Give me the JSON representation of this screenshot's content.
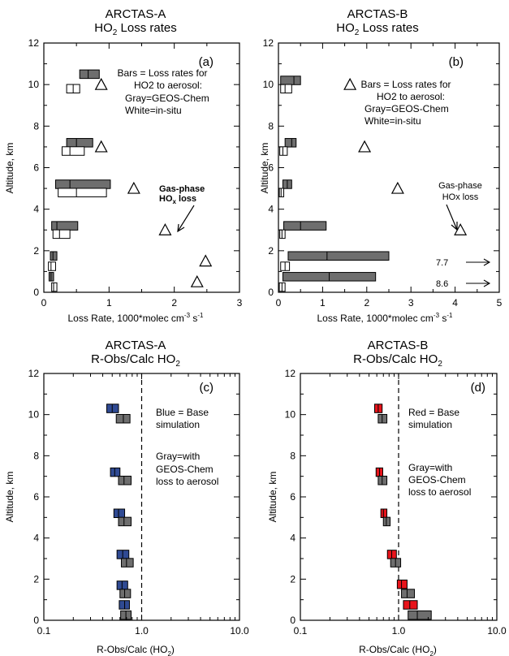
{
  "colors": {
    "gray": "#6e6e6e",
    "white": "#ffffff",
    "blue": "#2f4a93",
    "red": "#e8141b",
    "annot_gray": "#8c8c8c",
    "outline": "#000000"
  },
  "chart_data": [
    {
      "id": "a",
      "type": "bar",
      "orientation": "horizontal",
      "title": "ARCTAS-A",
      "subtitle": "HO₂ Loss rates",
      "panel_label": "(a)",
      "xlabel": "Loss Rate, 1000*molec cm⁻³ s⁻¹",
      "ylabel": "Altitude, km",
      "xlim": [
        0,
        3
      ],
      "ylim": [
        0,
        12
      ],
      "xscale": "linear",
      "xticks": [
        "0",
        "1",
        "2",
        "3"
      ],
      "yticks": [
        "0",
        "2",
        "4",
        "6",
        "8",
        "10",
        "12"
      ],
      "series": [
        {
          "name": "GEOS-Chem",
          "color": "gray",
          "boxes": [
            {
              "y": 10.5,
              "x": [
                0.55,
                0.68,
                0.85
              ]
            },
            {
              "y": 7.2,
              "x": [
                0.35,
                0.5,
                0.75
              ]
            },
            {
              "y": 5.2,
              "x": [
                0.18,
                0.4,
                1.02
              ]
            },
            {
              "y": 3.2,
              "x": [
                0.12,
                0.2,
                0.52
              ]
            },
            {
              "y": 1.75,
              "x": [
                0.1,
                0.14,
                0.2
              ]
            },
            {
              "y": 0.75,
              "x": [
                0.08,
                0.11,
                0.15
              ]
            }
          ]
        },
        {
          "name": "in-situ",
          "color": "white",
          "boxes": [
            {
              "y": 9.8,
              "x": [
                0.35,
                0.45,
                0.55
              ]
            },
            {
              "y": 6.8,
              "x": [
                0.28,
                0.4,
                0.62
              ]
            },
            {
              "y": 4.8,
              "x": [
                0.22,
                0.5,
                0.96
              ]
            },
            {
              "y": 2.8,
              "x": [
                0.14,
                0.24,
                0.4
              ]
            },
            {
              "y": 1.25,
              "x": [
                0.07,
                0.11,
                0.18
              ]
            },
            {
              "y": 0.25,
              "x": [
                0.12,
                0.15,
                0.2
              ]
            }
          ]
        },
        {
          "name": "Gas-phase HOx loss",
          "marker": "triangle",
          "points": [
            {
              "x": 0.88,
              "y": 10.0
            },
            {
              "x": 0.88,
              "y": 7.0
            },
            {
              "x": 1.38,
              "y": 5.0
            },
            {
              "x": 1.86,
              "y": 3.0
            },
            {
              "x": 2.48,
              "y": 1.5
            },
            {
              "x": 2.35,
              "y": 0.5
            }
          ]
        }
      ],
      "annotations": {
        "legend_line1": "Bars = Loss rates for",
        "legend_line2": "HO2 to aerosol:",
        "legend_gray": "Gray=GEOS-Chem",
        "legend_white": "White=in-situ",
        "gas_line1": "Gas-phase",
        "gas_line2_main": "HO",
        "gas_line2_sub": "x",
        "gas_line2_rest": " loss"
      }
    },
    {
      "id": "b",
      "type": "bar",
      "orientation": "horizontal",
      "title": "ARCTAS-B",
      "subtitle": "HO₂ Loss rates",
      "panel_label": "(b)",
      "xlabel": "Loss Rate, 1000*molec cm⁻³ s⁻¹",
      "ylabel": "Altitude, km",
      "xlim": [
        0,
        5
      ],
      "ylim": [
        0,
        12
      ],
      "xscale": "linear",
      "xticks": [
        "0",
        "1",
        "2",
        "3",
        "4",
        "5"
      ],
      "yticks": [
        "0",
        "2",
        "4",
        "6",
        "8",
        "10",
        "12"
      ],
      "series": [
        {
          "name": "GEOS-Chem",
          "color": "gray",
          "boxes": [
            {
              "y": 10.2,
              "x": [
                0.05,
                0.35,
                0.5
              ]
            },
            {
              "y": 7.2,
              "x": [
                0.15,
                0.3,
                0.4
              ]
            },
            {
              "y": 5.2,
              "x": [
                0.1,
                0.2,
                0.3
              ]
            },
            {
              "y": 3.2,
              "x": [
                0.12,
                0.5,
                1.08
              ]
            },
            {
              "y": 1.75,
              "x": [
                0.22,
                1.1,
                2.5
              ]
            },
            {
              "y": 0.75,
              "x": [
                0.1,
                1.15,
                2.2
              ]
            }
          ]
        },
        {
          "name": "in-situ",
          "color": "white",
          "boxes": [
            {
              "y": 9.8,
              "x": [
                0.05,
                0.15,
                0.3
              ]
            },
            {
              "y": 6.8,
              "x": [
                0.03,
                0.1,
                0.2
              ]
            },
            {
              "y": 4.8,
              "x": [
                0.02,
                0.06,
                0.12
              ]
            },
            {
              "y": 2.8,
              "x": [
                0.03,
                0.08,
                0.15
              ]
            },
            {
              "y": 1.25,
              "x": [
                0.05,
                0.15,
                0.25
              ]
            },
            {
              "y": 0.25,
              "x": [
                0.02,
                0.08,
                0.15
              ]
            }
          ]
        },
        {
          "name": "Gas-phase HOx loss",
          "marker": "triangle",
          "points": [
            {
              "x": 1.62,
              "y": 10.0
            },
            {
              "x": 1.95,
              "y": 7.0
            },
            {
              "x": 2.7,
              "y": 5.0
            },
            {
              "x": 4.12,
              "y": 3.0
            }
          ]
        }
      ],
      "offscale_values": [
        {
          "value": "7.7",
          "y": 1.5
        },
        {
          "value": "8.6",
          "y": 0.5
        }
      ],
      "annotations": {
        "legend_line1": "Bars = Loss rates for",
        "legend_line2": "HO2 to aerosol:",
        "legend_gray": "Gray=GEOS-Chem",
        "legend_white": "White=in-situ",
        "gas_line1": "Gas-phase",
        "gas_line2": "HOx loss"
      }
    },
    {
      "id": "c",
      "type": "bar",
      "orientation": "horizontal",
      "title": "ARCTAS-A",
      "subtitle": "R-Obs/Calc HO₂",
      "panel_label": "(c)",
      "xlabel": "R-Obs/Calc (HO₂)",
      "ylabel": "Altitude, km",
      "xlim": [
        0.1,
        10.0
      ],
      "ylim": [
        0,
        12
      ],
      "xscale": "log",
      "xticks": [
        "0.1",
        "1.0",
        "10.0"
      ],
      "yticks": [
        "0",
        "2",
        "4",
        "6",
        "8",
        "10",
        "12"
      ],
      "reference_line_x": 1.0,
      "series": [
        {
          "name": "Base simulation",
          "color": "blue",
          "boxes": [
            {
              "y": 10.3,
              "x": [
                0.44,
                0.5,
                0.58
              ]
            },
            {
              "y": 7.2,
              "x": [
                0.48,
                0.53,
                0.6
              ]
            },
            {
              "y": 5.2,
              "x": [
                0.52,
                0.58,
                0.67
              ]
            },
            {
              "y": 3.2,
              "x": [
                0.56,
                0.64,
                0.74
              ]
            },
            {
              "y": 1.7,
              "x": [
                0.56,
                0.63,
                0.72
              ]
            },
            {
              "y": 0.75,
              "x": [
                0.59,
                0.67,
                0.75
              ]
            }
          ]
        },
        {
          "name": "with GEOS-Chem loss to aerosol",
          "color": "gray",
          "boxes": [
            {
              "y": 9.8,
              "x": [
                0.55,
                0.65,
                0.76
              ]
            },
            {
              "y": 6.8,
              "x": [
                0.58,
                0.66,
                0.78
              ]
            },
            {
              "y": 4.8,
              "x": [
                0.58,
                0.66,
                0.78
              ]
            },
            {
              "y": 2.8,
              "x": [
                0.62,
                0.7,
                0.82
              ]
            },
            {
              "y": 1.3,
              "x": [
                0.6,
                0.67,
                0.77
              ]
            },
            {
              "y": 0.25,
              "x": [
                0.61,
                0.69,
                0.78
              ]
            }
          ]
        }
      ],
      "annotations": {
        "base_line1": "Blue = Base",
        "base_line2": "simulation",
        "gray_line1": "Gray=with",
        "gray_line2": "GEOS-Chem",
        "gray_line3": "loss to aerosol"
      }
    },
    {
      "id": "d",
      "type": "bar",
      "orientation": "horizontal",
      "title": "ARCTAS-B",
      "subtitle": "R-Obs/Calc HO₂",
      "panel_label": "(d)",
      "xlabel": "R-Obs/Calc (HO₂)",
      "ylabel": "Altitude, km",
      "xlim": [
        0.1,
        10.0
      ],
      "ylim": [
        0,
        12
      ],
      "xscale": "log",
      "xticks": [
        "0.1",
        "1.0",
        "10.0"
      ],
      "yticks": [
        "0",
        "2",
        "4",
        "6",
        "8",
        "10",
        "12"
      ],
      "reference_line_x": 1.0,
      "series": [
        {
          "name": "Base simulation",
          "color": "red",
          "boxes": [
            {
              "y": 10.3,
              "x": [
                0.57,
                0.62,
                0.68
              ]
            },
            {
              "y": 7.2,
              "x": [
                0.59,
                0.64,
                0.69
              ]
            },
            {
              "y": 5.2,
              "x": [
                0.66,
                0.7,
                0.76
              ]
            },
            {
              "y": 3.2,
              "x": [
                0.77,
                0.85,
                0.95
              ]
            },
            {
              "y": 1.75,
              "x": [
                0.97,
                1.07,
                1.22
              ]
            },
            {
              "y": 0.75,
              "x": [
                1.12,
                1.3,
                1.55
              ]
            }
          ]
        },
        {
          "name": "with GEOS-Chem loss to aerosol",
          "color": "gray",
          "boxes": [
            {
              "y": 9.8,
              "x": [
                0.62,
                0.68,
                0.76
              ]
            },
            {
              "y": 6.8,
              "x": [
                0.62,
                0.68,
                0.76
              ]
            },
            {
              "y": 4.8,
              "x": [
                0.7,
                0.75,
                0.82
              ]
            },
            {
              "y": 2.8,
              "x": [
                0.83,
                0.93,
                1.05
              ]
            },
            {
              "y": 1.3,
              "x": [
                1.07,
                1.22,
                1.45
              ]
            },
            {
              "y": 0.25,
              "x": [
                1.25,
                1.55,
                2.15
              ]
            }
          ]
        }
      ],
      "annotations": {
        "base_line1": "Red = Base",
        "base_line2": "simulation",
        "gray_line1": "Gray=with",
        "gray_line2": "GEOS-Chem",
        "gray_line3": "loss to aerosol"
      }
    }
  ]
}
